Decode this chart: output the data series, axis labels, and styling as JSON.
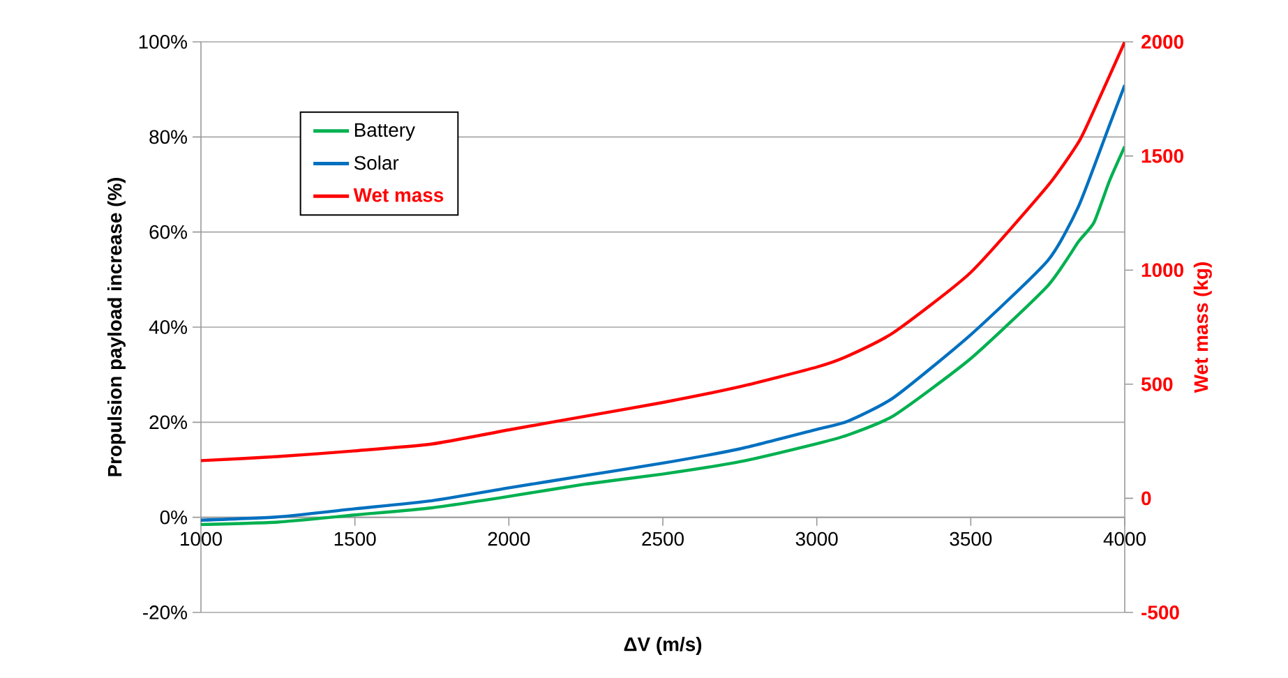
{
  "chart_data": {
    "type": "line",
    "xlabel": "ΔV (m/s)",
    "ylabel": "Propulsion payload increase (%)",
    "y2label": "Wet mass (kg)",
    "xlim": [
      1000,
      4000
    ],
    "xticks": [
      1000,
      1500,
      2000,
      2500,
      3000,
      3500,
      4000
    ],
    "ylim": [
      -20,
      100
    ],
    "yticks": [
      {
        "value": -20,
        "label": "-20%"
      },
      {
        "value": 0,
        "label": "0%"
      },
      {
        "value": 20,
        "label": "20%"
      },
      {
        "value": 40,
        "label": "40%"
      },
      {
        "value": 60,
        "label": "60%"
      },
      {
        "value": 80,
        "label": "80%"
      },
      {
        "value": 100,
        "label": "100%"
      }
    ],
    "y2lim": [
      -500,
      2000
    ],
    "y2ticks": [
      -500,
      0,
      500,
      1000,
      1500,
      2000
    ],
    "grid": "y",
    "legend": "top left",
    "marker": "none",
    "line_style": "solid",
    "series": [
      {
        "name": "Battery",
        "color": "#00b050",
        "x": [
          1000,
          1250,
          1500,
          1750,
          2000,
          2250,
          2500,
          2750,
          3000,
          3100,
          3250,
          3500,
          3750,
          3850,
          3900,
          3950,
          4000
        ],
        "values": [
          -1.5,
          -1.0,
          0.5,
          2,
          4.4,
          7,
          9.1,
          11.7,
          15.5,
          17.3,
          21.4,
          33.4,
          48.7,
          58,
          62,
          70.7,
          78
        ]
      },
      {
        "name": "Solar",
        "color": "#0070c0",
        "x": [
          1000,
          1250,
          1500,
          1750,
          2000,
          2250,
          2500,
          2750,
          3000,
          3100,
          3250,
          3500,
          3750,
          3850,
          3950,
          4000
        ],
        "values": [
          -0.6,
          0.1,
          1.8,
          3.5,
          6.2,
          8.8,
          11.4,
          14.4,
          18.5,
          20.2,
          25.2,
          38.4,
          54,
          65.4,
          82.4,
          90.9
        ]
      },
      {
        "name": "Wet mass",
        "color": "#ff0000",
        "axis": "y2",
        "x": [
          1000,
          1250,
          1500,
          1750,
          2000,
          2250,
          2500,
          2750,
          3000,
          3100,
          3250,
          3500,
          3750,
          3850,
          3900,
          4000
        ],
        "values": [
          165,
          183,
          208,
          238,
          300,
          360,
          420,
          489,
          575,
          623,
          727,
          990,
          1369,
          1560,
          1700,
          2000
        ]
      }
    ]
  }
}
